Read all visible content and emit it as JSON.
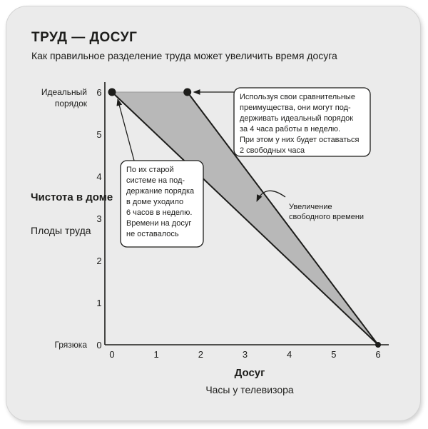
{
  "header": {
    "title": "ТРУД — ДОСУГ",
    "subtitle": "Как правильное разделение труда может увеличить время досуга"
  },
  "chart_data": {
    "type": "line",
    "title": "ТРУД — ДОСУГ",
    "subtitle": "Как правильное разделение труда может увеличить время досуга",
    "xlabel": "Досуг",
    "xlabel_sub": "Часы у телевизора",
    "ylabel": "Чистота в доме",
    "ylabel_sub": "Плоды труда",
    "xlim": [
      0,
      6
    ],
    "ylim": [
      0,
      6
    ],
    "x_ticks": [
      "0",
      "1",
      "2",
      "3",
      "4",
      "5",
      "6"
    ],
    "y_ticks": [
      "0",
      "1",
      "2",
      "3",
      "4",
      "5",
      "6"
    ],
    "y_tick_names": {
      "top": "Идеальный порядок",
      "bottom": "Грязюка"
    },
    "series": [
      {
        "points": [
          [
            0,
            6
          ],
          [
            6,
            0
          ]
        ]
      },
      {
        "points": [
          [
            1.7,
            6
          ],
          [
            6,
            0
          ]
        ]
      }
    ],
    "key_points": [
      {
        "x": 0,
        "y": 6
      },
      {
        "x": 1.7,
        "y": 6
      },
      {
        "x": 6,
        "y": 0
      }
    ],
    "shaded_region": [
      [
        0,
        6
      ],
      [
        1.7,
        6
      ],
      [
        6,
        0
      ]
    ],
    "annotations": [
      {
        "id": "old_system",
        "lines": [
          "По их старой",
          "системе на под-",
          "держание порядка",
          "в доме уходило",
          "6 часов в неделю.",
          "Времени на досуг",
          "не оставалось"
        ]
      },
      {
        "id": "advantage",
        "lines": [
          "Используя свои сравнительные",
          "преимущества, они могут под-",
          "держивать идеальный порядок",
          "за 4 часа работы в неделю.",
          "При этом у них будет оставаться",
          "2 свободных часа"
        ]
      },
      {
        "id": "increase",
        "lines": [
          "Увеличение",
          "свободного времени"
        ]
      }
    ],
    "colors": {
      "shade": "#b8b8b8",
      "line": "#1d1d1b",
      "card": "#ebebeb",
      "box": "#ffffff"
    }
  }
}
